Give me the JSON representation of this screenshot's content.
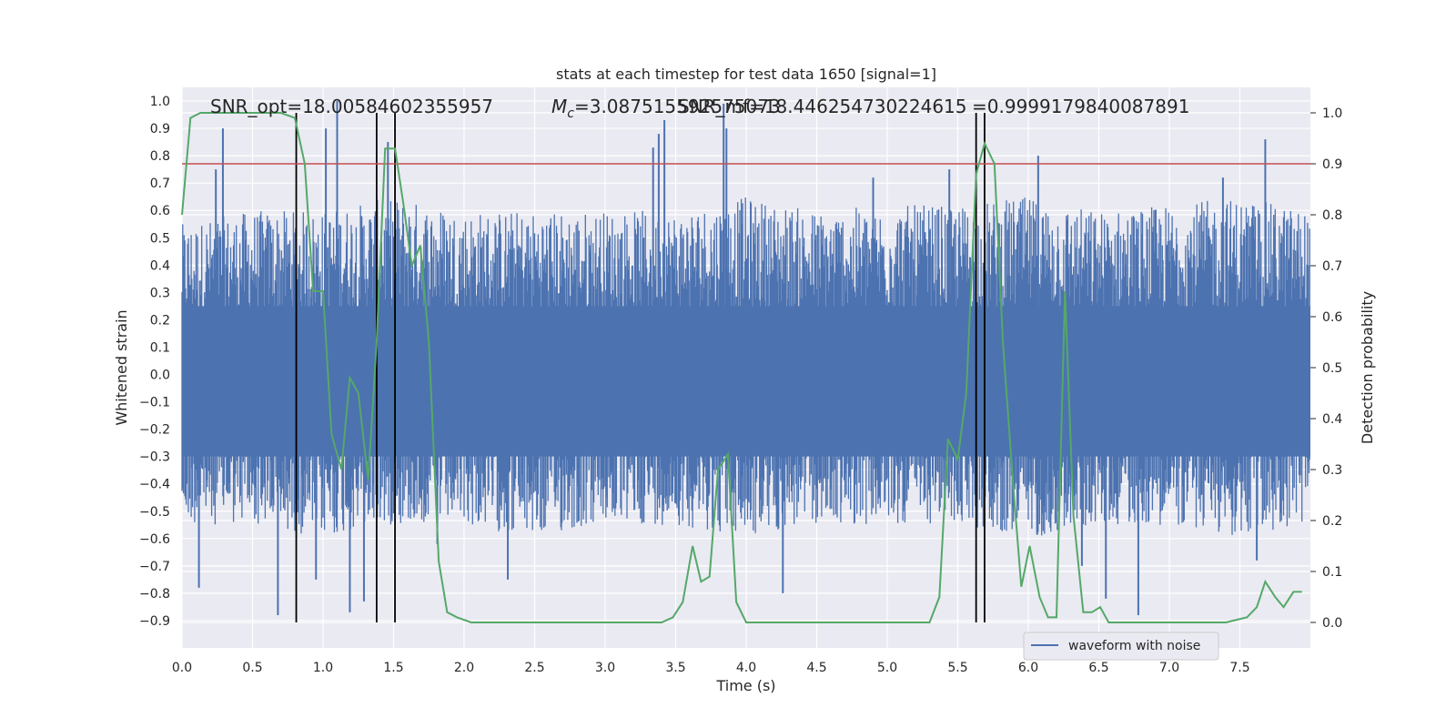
{
  "chart_data": {
    "type": "line",
    "title": "stats at each timestep for test data 1650 [signal=1]",
    "xlabel": "Time (s)",
    "ylabel": "Whitened strain",
    "y2label": "Detection probability",
    "xlim": [
      0.0,
      8.0
    ],
    "ylim": [
      -1.0,
      1.05
    ],
    "y2lim": [
      -0.05,
      1.05
    ],
    "x_ticks": [
      0.0,
      0.5,
      1.0,
      1.5,
      2.0,
      2.5,
      3.0,
      3.5,
      4.0,
      4.5,
      5.0,
      5.5,
      6.0,
      6.5,
      7.0,
      7.5
    ],
    "x_tick_labels": [
      "0.0",
      "0.5",
      "1.0",
      "1.5",
      "2.0",
      "2.5",
      "3.0",
      "3.5",
      "4.0",
      "4.5",
      "5.0",
      "5.5",
      "6.0",
      "6.5",
      "7.0",
      "7.5"
    ],
    "y_ticks": [
      1.0,
      0.9,
      0.8,
      0.7,
      0.6,
      0.5,
      0.4,
      0.3,
      0.2,
      0.1,
      0.0,
      -0.1,
      -0.2,
      -0.3,
      -0.4,
      -0.5,
      -0.6,
      -0.7,
      -0.8,
      -0.9
    ],
    "y_tick_labels": [
      "1.0",
      "0.9",
      "0.8",
      "0.7",
      "0.6",
      "0.5",
      "0.4",
      "0.3",
      "0.2",
      "0.1",
      "0.0",
      "−0.1",
      "−0.2",
      "−0.3",
      "−0.4",
      "−0.5",
      "−0.6",
      "−0.7",
      "−0.8",
      "−0.9"
    ],
    "y2_ticks": [
      1.0,
      0.9,
      0.8,
      0.7,
      0.6,
      0.5,
      0.4,
      0.3,
      0.2,
      0.1,
      0.0
    ],
    "y2_tick_labels": [
      "1.0",
      "0.9",
      "0.8",
      "0.7",
      "0.6",
      "0.5",
      "0.4",
      "0.3",
      "0.2",
      "0.1",
      "0.0"
    ],
    "annotations": {
      "snr_opt": "SNR_opt=18.00584602355957",
      "mc_prefix": "M",
      "mc_sub": "c",
      "mc_value": "=3.087515592575073",
      "snr_mf": "SNR_mf=18.446254730224615",
      "prob": "=0.9999179840087891"
    },
    "threshold": 0.9,
    "vertical_lines": [
      0.81,
      1.38,
      1.51,
      5.63,
      5.69
    ],
    "grid": true,
    "legend_position": "lower-right",
    "series": [
      {
        "name": "waveform with noise",
        "color": "#4c72b0",
        "envelope": {
          "x": [
            0.0,
            0.5,
            1.0,
            1.5,
            2.0,
            2.5,
            3.0,
            3.5,
            4.0,
            4.5,
            5.0,
            5.5,
            6.0,
            6.5,
            7.0,
            7.5,
            8.0
          ],
          "upper": [
            0.55,
            0.6,
            0.6,
            0.65,
            0.6,
            0.6,
            0.6,
            0.6,
            0.65,
            0.6,
            0.62,
            0.62,
            0.65,
            0.6,
            0.62,
            0.65,
            0.6
          ],
          "lower": [
            -0.55,
            -0.55,
            -0.6,
            -0.55,
            -0.55,
            -0.6,
            -0.55,
            -0.55,
            -0.6,
            -0.55,
            -0.55,
            -0.55,
            -0.6,
            -0.55,
            -0.55,
            -0.6,
            -0.55
          ]
        },
        "spikes": [
          {
            "x": 0.29,
            "y": 0.9
          },
          {
            "x": 0.24,
            "y": 0.75
          },
          {
            "x": 0.12,
            "y": -0.78
          },
          {
            "x": 0.68,
            "y": -0.88
          },
          {
            "x": 1.1,
            "y": 1.0
          },
          {
            "x": 1.02,
            "y": 0.9
          },
          {
            "x": 1.19,
            "y": -0.87
          },
          {
            "x": 1.29,
            "y": -0.83
          },
          {
            "x": 1.46,
            "y": 0.85
          },
          {
            "x": 0.95,
            "y": -0.75
          },
          {
            "x": 1.81,
            "y": -0.62
          },
          {
            "x": 3.34,
            "y": 0.83
          },
          {
            "x": 3.42,
            "y": 0.93
          },
          {
            "x": 3.38,
            "y": 0.88
          },
          {
            "x": 3.84,
            "y": 0.99
          },
          {
            "x": 3.86,
            "y": 0.9
          },
          {
            "x": 4.26,
            "y": -0.8
          },
          {
            "x": 2.31,
            "y": -0.75
          },
          {
            "x": 6.07,
            "y": 0.8
          },
          {
            "x": 6.78,
            "y": -0.88
          },
          {
            "x": 7.38,
            "y": 0.72
          },
          {
            "x": 7.68,
            "y": 0.86
          },
          {
            "x": 7.62,
            "y": -0.68
          },
          {
            "x": 5.44,
            "y": 0.75
          },
          {
            "x": 6.55,
            "y": -0.82
          },
          {
            "x": 6.38,
            "y": -0.7
          },
          {
            "x": 4.9,
            "y": 0.72
          }
        ]
      },
      {
        "name": "",
        "color": "#55a868",
        "axis": "right",
        "x": [
          0.0,
          0.06,
          0.13,
          0.2,
          0.3,
          0.4,
          0.5,
          0.6,
          0.7,
          0.8,
          0.87,
          0.93,
          1.0,
          1.06,
          1.13,
          1.19,
          1.25,
          1.32,
          1.38,
          1.44,
          1.51,
          1.57,
          1.63,
          1.69,
          1.75,
          1.82,
          1.88,
          1.95,
          2.05,
          2.2,
          2.4,
          2.6,
          2.8,
          3.0,
          3.2,
          3.4,
          3.48,
          3.55,
          3.62,
          3.68,
          3.74,
          3.8,
          3.87,
          3.93,
          4.0,
          4.06,
          4.2,
          4.4,
          4.6,
          4.8,
          5.0,
          5.2,
          5.3,
          5.37,
          5.43,
          5.5,
          5.56,
          5.63,
          5.69,
          5.76,
          5.82,
          5.89,
          5.95,
          6.01,
          6.08,
          6.14,
          6.2,
          6.26,
          6.32,
          6.39,
          6.45,
          6.51,
          6.57,
          6.64,
          6.7,
          6.8,
          7.0,
          7.2,
          7.4,
          7.55,
          7.62,
          7.68,
          7.75,
          7.81,
          7.88,
          7.94
        ],
        "y": [
          0.8,
          0.99,
          1.0,
          1.0,
          1.0,
          1.0,
          1.0,
          1.0,
          1.0,
          0.99,
          0.9,
          0.65,
          0.65,
          0.37,
          0.3,
          0.48,
          0.45,
          0.28,
          0.55,
          0.93,
          0.93,
          0.82,
          0.7,
          0.74,
          0.55,
          0.12,
          0.02,
          0.01,
          0.0,
          0.0,
          0.0,
          0.0,
          0.0,
          0.0,
          0.0,
          0.0,
          0.01,
          0.04,
          0.15,
          0.08,
          0.09,
          0.3,
          0.33,
          0.04,
          0.0,
          0.0,
          0.0,
          0.0,
          0.0,
          0.0,
          0.0,
          0.0,
          0.0,
          0.05,
          0.36,
          0.32,
          0.45,
          0.88,
          0.94,
          0.9,
          0.55,
          0.28,
          0.07,
          0.15,
          0.05,
          0.01,
          0.01,
          0.65,
          0.21,
          0.02,
          0.02,
          0.03,
          0.0,
          0.0,
          0.0,
          0.0,
          0.0,
          0.0,
          0.0,
          0.01,
          0.03,
          0.08,
          0.05,
          0.03,
          0.06,
          0.06
        ]
      }
    ]
  }
}
